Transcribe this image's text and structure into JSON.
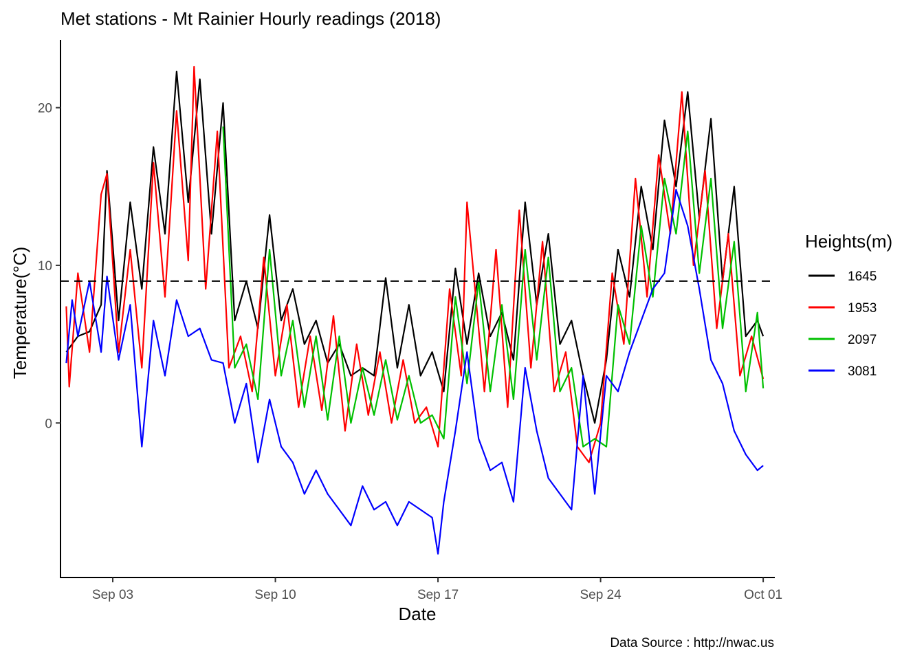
{
  "chart_data": {
    "type": "line",
    "title": "Met stations -  Mt Rainier Hourly readings (2018)",
    "xlabel": "Date",
    "ylabel": "Temperature(°C)",
    "caption": "Data Source : http://nwac.us",
    "legend_title": "Heights(m)",
    "legend_position": "right",
    "grid": false,
    "x_type": "date",
    "xlim": [
      "2018-08-31T18:00",
      "2018-10-01T12:00"
    ],
    "ylim": [
      -9.8,
      24.3
    ],
    "x_ticks": [
      {
        "date": "2018-09-03",
        "label": "Sep 03"
      },
      {
        "date": "2018-09-10",
        "label": "Sep 10"
      },
      {
        "date": "2018-09-17",
        "label": "Sep 17"
      },
      {
        "date": "2018-09-24",
        "label": "Sep 24"
      },
      {
        "date": "2018-10-01",
        "label": "Oct 01"
      }
    ],
    "y_ticks": [
      {
        "value": 0,
        "label": "0"
      },
      {
        "value": 10,
        "label": "10"
      },
      {
        "value": 20,
        "label": "20"
      }
    ],
    "reference_line": {
      "y": 9,
      "style": "dashed",
      "color": "#000000"
    },
    "series": [
      {
        "name": "1645",
        "color": "#000000",
        "points": [
          [
            "2018-09-01T00:00",
            4.5
          ],
          [
            "2018-09-01T12:00",
            5.5
          ],
          [
            "2018-09-02T00:00",
            5.8
          ],
          [
            "2018-09-02T12:00",
            7.5
          ],
          [
            "2018-09-02T18:00",
            16.0
          ],
          [
            "2018-09-03T06:00",
            6.5
          ],
          [
            "2018-09-03T18:00",
            14.0
          ],
          [
            "2018-09-04T06:00",
            8.5
          ],
          [
            "2018-09-04T18:00",
            17.5
          ],
          [
            "2018-09-05T06:00",
            12.0
          ],
          [
            "2018-09-05T18:00",
            22.3
          ],
          [
            "2018-09-06T06:00",
            14.0
          ],
          [
            "2018-09-06T18:00",
            21.8
          ],
          [
            "2018-09-07T06:00",
            12.0
          ],
          [
            "2018-09-07T18:00",
            20.3
          ],
          [
            "2018-09-08T06:00",
            6.5
          ],
          [
            "2018-09-08T18:00",
            9.0
          ],
          [
            "2018-09-09T06:00",
            6.0
          ],
          [
            "2018-09-09T18:00",
            13.2
          ],
          [
            "2018-09-10T06:00",
            6.5
          ],
          [
            "2018-09-10T18:00",
            8.5
          ],
          [
            "2018-09-11T06:00",
            5.0
          ],
          [
            "2018-09-11T18:00",
            6.5
          ],
          [
            "2018-09-12T06:00",
            3.8
          ],
          [
            "2018-09-12T18:00",
            5.0
          ],
          [
            "2018-09-13T06:00",
            3.0
          ],
          [
            "2018-09-13T18:00",
            3.5
          ],
          [
            "2018-09-14T06:00",
            3.0
          ],
          [
            "2018-09-14T18:00",
            9.2
          ],
          [
            "2018-09-15T06:00",
            3.5
          ],
          [
            "2018-09-15T18:00",
            7.5
          ],
          [
            "2018-09-16T06:00",
            3.0
          ],
          [
            "2018-09-16T18:00",
            4.5
          ],
          [
            "2018-09-17T06:00",
            2.0
          ],
          [
            "2018-09-17T18:00",
            9.8
          ],
          [
            "2018-09-18T06:00",
            5.0
          ],
          [
            "2018-09-18T18:00",
            9.5
          ],
          [
            "2018-09-19T06:00",
            5.5
          ],
          [
            "2018-09-19T18:00",
            7.0
          ],
          [
            "2018-09-20T06:00",
            4.0
          ],
          [
            "2018-09-20T18:00",
            14.0
          ],
          [
            "2018-09-21T06:00",
            7.5
          ],
          [
            "2018-09-21T18:00",
            12.0
          ],
          [
            "2018-09-22T06:00",
            5.0
          ],
          [
            "2018-09-22T18:00",
            6.5
          ],
          [
            "2018-09-23T06:00",
            3.0
          ],
          [
            "2018-09-23T18:00",
            0.0
          ],
          [
            "2018-09-24T06:00",
            4.0
          ],
          [
            "2018-09-24T18:00",
            11.0
          ],
          [
            "2018-09-25T06:00",
            8.0
          ],
          [
            "2018-09-25T18:00",
            15.0
          ],
          [
            "2018-09-26T06:00",
            11.0
          ],
          [
            "2018-09-26T18:00",
            19.2
          ],
          [
            "2018-09-27T06:00",
            15.0
          ],
          [
            "2018-09-27T18:00",
            21.0
          ],
          [
            "2018-09-28T06:00",
            13.0
          ],
          [
            "2018-09-28T18:00",
            19.3
          ],
          [
            "2018-09-29T06:00",
            9.0
          ],
          [
            "2018-09-29T18:00",
            15.0
          ],
          [
            "2018-09-30T06:00",
            5.5
          ],
          [
            "2018-09-30T18:00",
            6.5
          ],
          [
            "2018-10-01T00:00",
            5.5
          ]
        ]
      },
      {
        "name": "1953",
        "color": "#ff0000",
        "points": [
          [
            "2018-09-01T00:00",
            7.4
          ],
          [
            "2018-09-01T03:00",
            2.3
          ],
          [
            "2018-09-01T12:00",
            9.5
          ],
          [
            "2018-09-02T00:00",
            4.5
          ],
          [
            "2018-09-02T12:00",
            14.5
          ],
          [
            "2018-09-02T18:00",
            15.8
          ],
          [
            "2018-09-03T06:00",
            4.5
          ],
          [
            "2018-09-03T18:00",
            11.0
          ],
          [
            "2018-09-04T06:00",
            3.5
          ],
          [
            "2018-09-04T18:00",
            16.5
          ],
          [
            "2018-09-05T06:00",
            8.0
          ],
          [
            "2018-09-05T18:00",
            19.8
          ],
          [
            "2018-09-06T06:00",
            10.3
          ],
          [
            "2018-09-06T12:00",
            22.6
          ],
          [
            "2018-09-07T00:00",
            8.5
          ],
          [
            "2018-09-07T12:00",
            18.5
          ],
          [
            "2018-09-08T00:00",
            3.5
          ],
          [
            "2018-09-08T12:00",
            5.5
          ],
          [
            "2018-09-09T00:00",
            2.0
          ],
          [
            "2018-09-09T12:00",
            10.5
          ],
          [
            "2018-09-10T00:00",
            3.0
          ],
          [
            "2018-09-10T12:00",
            7.5
          ],
          [
            "2018-09-11T00:00",
            1.0
          ],
          [
            "2018-09-11T12:00",
            5.5
          ],
          [
            "2018-09-12T00:00",
            0.8
          ],
          [
            "2018-09-12T12:00",
            6.8
          ],
          [
            "2018-09-13T00:00",
            -0.5
          ],
          [
            "2018-09-13T12:00",
            5.0
          ],
          [
            "2018-09-14T00:00",
            0.5
          ],
          [
            "2018-09-14T12:00",
            4.5
          ],
          [
            "2018-09-15T00:00",
            0.0
          ],
          [
            "2018-09-15T12:00",
            4.0
          ],
          [
            "2018-09-16T00:00",
            0.0
          ],
          [
            "2018-09-16T12:00",
            1.0
          ],
          [
            "2018-09-17T00:00",
            -1.5
          ],
          [
            "2018-09-17T12:00",
            8.5
          ],
          [
            "2018-09-18T00:00",
            3.0
          ],
          [
            "2018-09-18T06:00",
            14.0
          ],
          [
            "2018-09-19T00:00",
            2.0
          ],
          [
            "2018-09-19T12:00",
            11.0
          ],
          [
            "2018-09-20T00:00",
            1.0
          ],
          [
            "2018-09-20T12:00",
            13.5
          ],
          [
            "2018-09-21T00:00",
            3.5
          ],
          [
            "2018-09-21T12:00",
            11.5
          ],
          [
            "2018-09-22T00:00",
            2.0
          ],
          [
            "2018-09-22T12:00",
            4.5
          ],
          [
            "2018-09-23T00:00",
            -1.5
          ],
          [
            "2018-09-23T12:00",
            -2.5
          ],
          [
            "2018-09-24T00:00",
            0.0
          ],
          [
            "2018-09-24T12:00",
            9.5
          ],
          [
            "2018-09-25T00:00",
            5.0
          ],
          [
            "2018-09-25T12:00",
            15.5
          ],
          [
            "2018-09-26T00:00",
            8.0
          ],
          [
            "2018-09-26T12:00",
            17.0
          ],
          [
            "2018-09-27T00:00",
            12.0
          ],
          [
            "2018-09-27T12:00",
            21.0
          ],
          [
            "2018-09-28T00:00",
            10.0
          ],
          [
            "2018-09-28T12:00",
            16.0
          ],
          [
            "2018-09-29T00:00",
            6.0
          ],
          [
            "2018-09-29T12:00",
            12.0
          ],
          [
            "2018-09-30T00:00",
            3.0
          ],
          [
            "2018-09-30T12:00",
            5.5
          ],
          [
            "2018-10-01T00:00",
            2.8
          ]
        ]
      },
      {
        "name": "2097",
        "color": "#00c000",
        "points": [
          [
            "2018-09-07T18:00",
            18.8
          ],
          [
            "2018-09-08T06:00",
            3.5
          ],
          [
            "2018-09-08T18:00",
            5.0
          ],
          [
            "2018-09-09T06:00",
            1.5
          ],
          [
            "2018-09-09T18:00",
            11.0
          ],
          [
            "2018-09-10T06:00",
            3.0
          ],
          [
            "2018-09-10T18:00",
            6.5
          ],
          [
            "2018-09-11T06:00",
            1.0
          ],
          [
            "2018-09-11T18:00",
            5.5
          ],
          [
            "2018-09-12T06:00",
            0.2
          ],
          [
            "2018-09-12T18:00",
            5.5
          ],
          [
            "2018-09-13T06:00",
            0.0
          ],
          [
            "2018-09-13T18:00",
            3.5
          ],
          [
            "2018-09-14T06:00",
            0.5
          ],
          [
            "2018-09-14T18:00",
            4.0
          ],
          [
            "2018-09-15T06:00",
            0.2
          ],
          [
            "2018-09-15T18:00",
            3.0
          ],
          [
            "2018-09-16T06:00",
            0.0
          ],
          [
            "2018-09-16T18:00",
            0.5
          ],
          [
            "2018-09-17T06:00",
            -1.0
          ],
          [
            "2018-09-17T18:00",
            8.0
          ],
          [
            "2018-09-18T06:00",
            2.5
          ],
          [
            "2018-09-18T18:00",
            9.0
          ],
          [
            "2018-09-19T06:00",
            2.0
          ],
          [
            "2018-09-19T18:00",
            7.5
          ],
          [
            "2018-09-20T06:00",
            1.5
          ],
          [
            "2018-09-20T18:00",
            11.0
          ],
          [
            "2018-09-21T06:00",
            4.0
          ],
          [
            "2018-09-21T18:00",
            10.5
          ],
          [
            "2018-09-22T06:00",
            2.0
          ],
          [
            "2018-09-22T18:00",
            3.5
          ],
          [
            "2018-09-23T06:00",
            -1.5
          ],
          [
            "2018-09-23T18:00",
            -1.0
          ],
          [
            "2018-09-24T06:00",
            -1.5
          ],
          [
            "2018-09-24T18:00",
            7.5
          ],
          [
            "2018-09-25T06:00",
            5.0
          ],
          [
            "2018-09-25T18:00",
            12.5
          ],
          [
            "2018-09-26T06:00",
            8.0
          ],
          [
            "2018-09-26T18:00",
            15.5
          ],
          [
            "2018-09-27T06:00",
            12.0
          ],
          [
            "2018-09-27T18:00",
            18.5
          ],
          [
            "2018-09-28T06:00",
            9.5
          ],
          [
            "2018-09-28T18:00",
            15.5
          ],
          [
            "2018-09-29T06:00",
            6.0
          ],
          [
            "2018-09-29T18:00",
            11.5
          ],
          [
            "2018-09-30T06:00",
            2.0
          ],
          [
            "2018-09-30T18:00",
            7.0
          ],
          [
            "2018-10-01T00:00",
            2.2
          ]
        ]
      },
      {
        "name": "3081",
        "color": "#0000ff",
        "points": [
          [
            "2018-09-01T00:00",
            3.8
          ],
          [
            "2018-09-01T06:00",
            7.8
          ],
          [
            "2018-09-01T12:00",
            5.5
          ],
          [
            "2018-09-02T00:00",
            9.0
          ],
          [
            "2018-09-02T12:00",
            4.5
          ],
          [
            "2018-09-02T18:00",
            9.3
          ],
          [
            "2018-09-03T06:00",
            4.0
          ],
          [
            "2018-09-03T18:00",
            7.5
          ],
          [
            "2018-09-04T00:00",
            3.0
          ],
          [
            "2018-09-04T06:00",
            -1.5
          ],
          [
            "2018-09-04T18:00",
            6.5
          ],
          [
            "2018-09-05T06:00",
            3.0
          ],
          [
            "2018-09-05T18:00",
            7.8
          ],
          [
            "2018-09-06T06:00",
            5.5
          ],
          [
            "2018-09-06T18:00",
            6.0
          ],
          [
            "2018-09-07T06:00",
            4.0
          ],
          [
            "2018-09-07T18:00",
            3.8
          ],
          [
            "2018-09-08T06:00",
            0.0
          ],
          [
            "2018-09-08T18:00",
            2.5
          ],
          [
            "2018-09-09T06:00",
            -2.5
          ],
          [
            "2018-09-09T18:00",
            1.5
          ],
          [
            "2018-09-10T06:00",
            -1.5
          ],
          [
            "2018-09-10T18:00",
            -2.5
          ],
          [
            "2018-09-11T06:00",
            -4.5
          ],
          [
            "2018-09-11T18:00",
            -3.0
          ],
          [
            "2018-09-12T06:00",
            -4.5
          ],
          [
            "2018-09-12T18:00",
            -5.5
          ],
          [
            "2018-09-13T06:00",
            -6.5
          ],
          [
            "2018-09-13T18:00",
            -4.0
          ],
          [
            "2018-09-14T06:00",
            -5.5
          ],
          [
            "2018-09-14T18:00",
            -5.0
          ],
          [
            "2018-09-15T06:00",
            -6.5
          ],
          [
            "2018-09-15T18:00",
            -5.0
          ],
          [
            "2018-09-16T06:00",
            -5.5
          ],
          [
            "2018-09-16T18:00",
            -6.0
          ],
          [
            "2018-09-17T00:00",
            -8.3
          ],
          [
            "2018-09-17T06:00",
            -5.0
          ],
          [
            "2018-09-17T18:00",
            -0.5
          ],
          [
            "2018-09-18T06:00",
            4.5
          ],
          [
            "2018-09-18T18:00",
            -1.0
          ],
          [
            "2018-09-19T06:00",
            -3.0
          ],
          [
            "2018-09-19T18:00",
            -2.5
          ],
          [
            "2018-09-20T06:00",
            -5.0
          ],
          [
            "2018-09-20T18:00",
            3.5
          ],
          [
            "2018-09-21T06:00",
            -0.5
          ],
          [
            "2018-09-21T18:00",
            -3.5
          ],
          [
            "2018-09-22T06:00",
            -4.5
          ],
          [
            "2018-09-22T18:00",
            -5.5
          ],
          [
            "2018-09-23T06:00",
            3.0
          ],
          [
            "2018-09-23T18:00",
            -4.5
          ],
          [
            "2018-09-24T06:00",
            3.0
          ],
          [
            "2018-09-24T18:00",
            2.0
          ],
          [
            "2018-09-25T06:00",
            4.5
          ],
          [
            "2018-09-25T18:00",
            6.5
          ],
          [
            "2018-09-26T06:00",
            8.5
          ],
          [
            "2018-09-26T18:00",
            9.5
          ],
          [
            "2018-09-27T06:00",
            14.8
          ],
          [
            "2018-09-27T18:00",
            12.5
          ],
          [
            "2018-09-28T06:00",
            8.5
          ],
          [
            "2018-09-28T18:00",
            4.0
          ],
          [
            "2018-09-29T06:00",
            2.5
          ],
          [
            "2018-09-29T18:00",
            -0.5
          ],
          [
            "2018-09-30T06:00",
            -2.0
          ],
          [
            "2018-09-30T18:00",
            -3.0
          ],
          [
            "2018-10-01T00:00",
            -2.7
          ]
        ]
      }
    ]
  }
}
